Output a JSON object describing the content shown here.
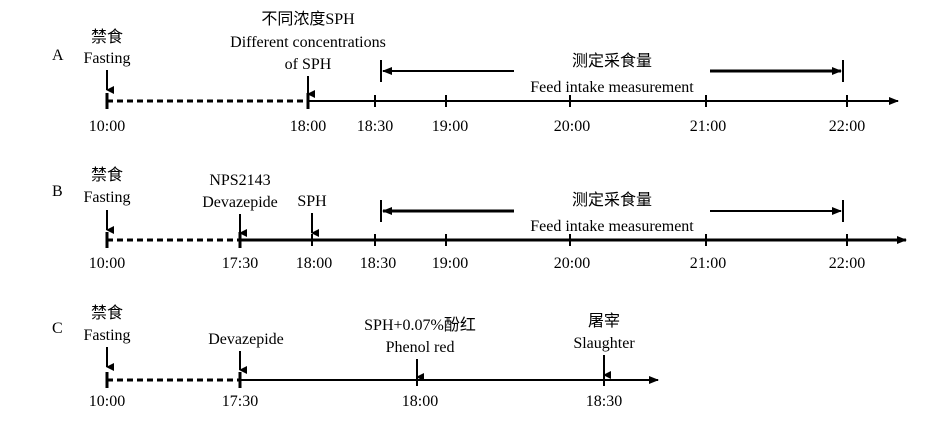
{
  "panels": [
    {
      "letter": "A",
      "time_ticks": [
        "10:00",
        "18:00",
        "18:30",
        "19:00",
        "20:00",
        "21:00",
        "22:00"
      ],
      "events": [
        {
          "cn": "禁食",
          "en": "Fasting"
        },
        {
          "cn": "不同浓度SPH",
          "en": "Different concentrations",
          "en2": "of SPH"
        }
      ],
      "measurement": {
        "cn": "测定采食量",
        "en": "Feed intake measurement"
      }
    },
    {
      "letter": "B",
      "time_ticks": [
        "10:00",
        "17:30",
        "18:00",
        "18:30",
        "19:00",
        "20:00",
        "21:00",
        "22:00"
      ],
      "events": [
        {
          "cn": "禁食",
          "en": "Fasting"
        },
        {
          "en": "NPS2143",
          "en2": "Devazepide"
        },
        {
          "en": "SPH"
        }
      ],
      "measurement": {
        "cn": "测定采食量",
        "en": "Feed intake measurement"
      }
    },
    {
      "letter": "C",
      "time_ticks": [
        "10:00",
        "17:30",
        "18:00",
        "18:30"
      ],
      "events": [
        {
          "cn": "禁食",
          "en": "Fasting"
        },
        {
          "en": "Devazepide"
        },
        {
          "cn": "SPH+0.07%酚红",
          "en": "Phenol red"
        },
        {
          "cn": "屠宰",
          "en": "Slaughter"
        }
      ]
    }
  ]
}
